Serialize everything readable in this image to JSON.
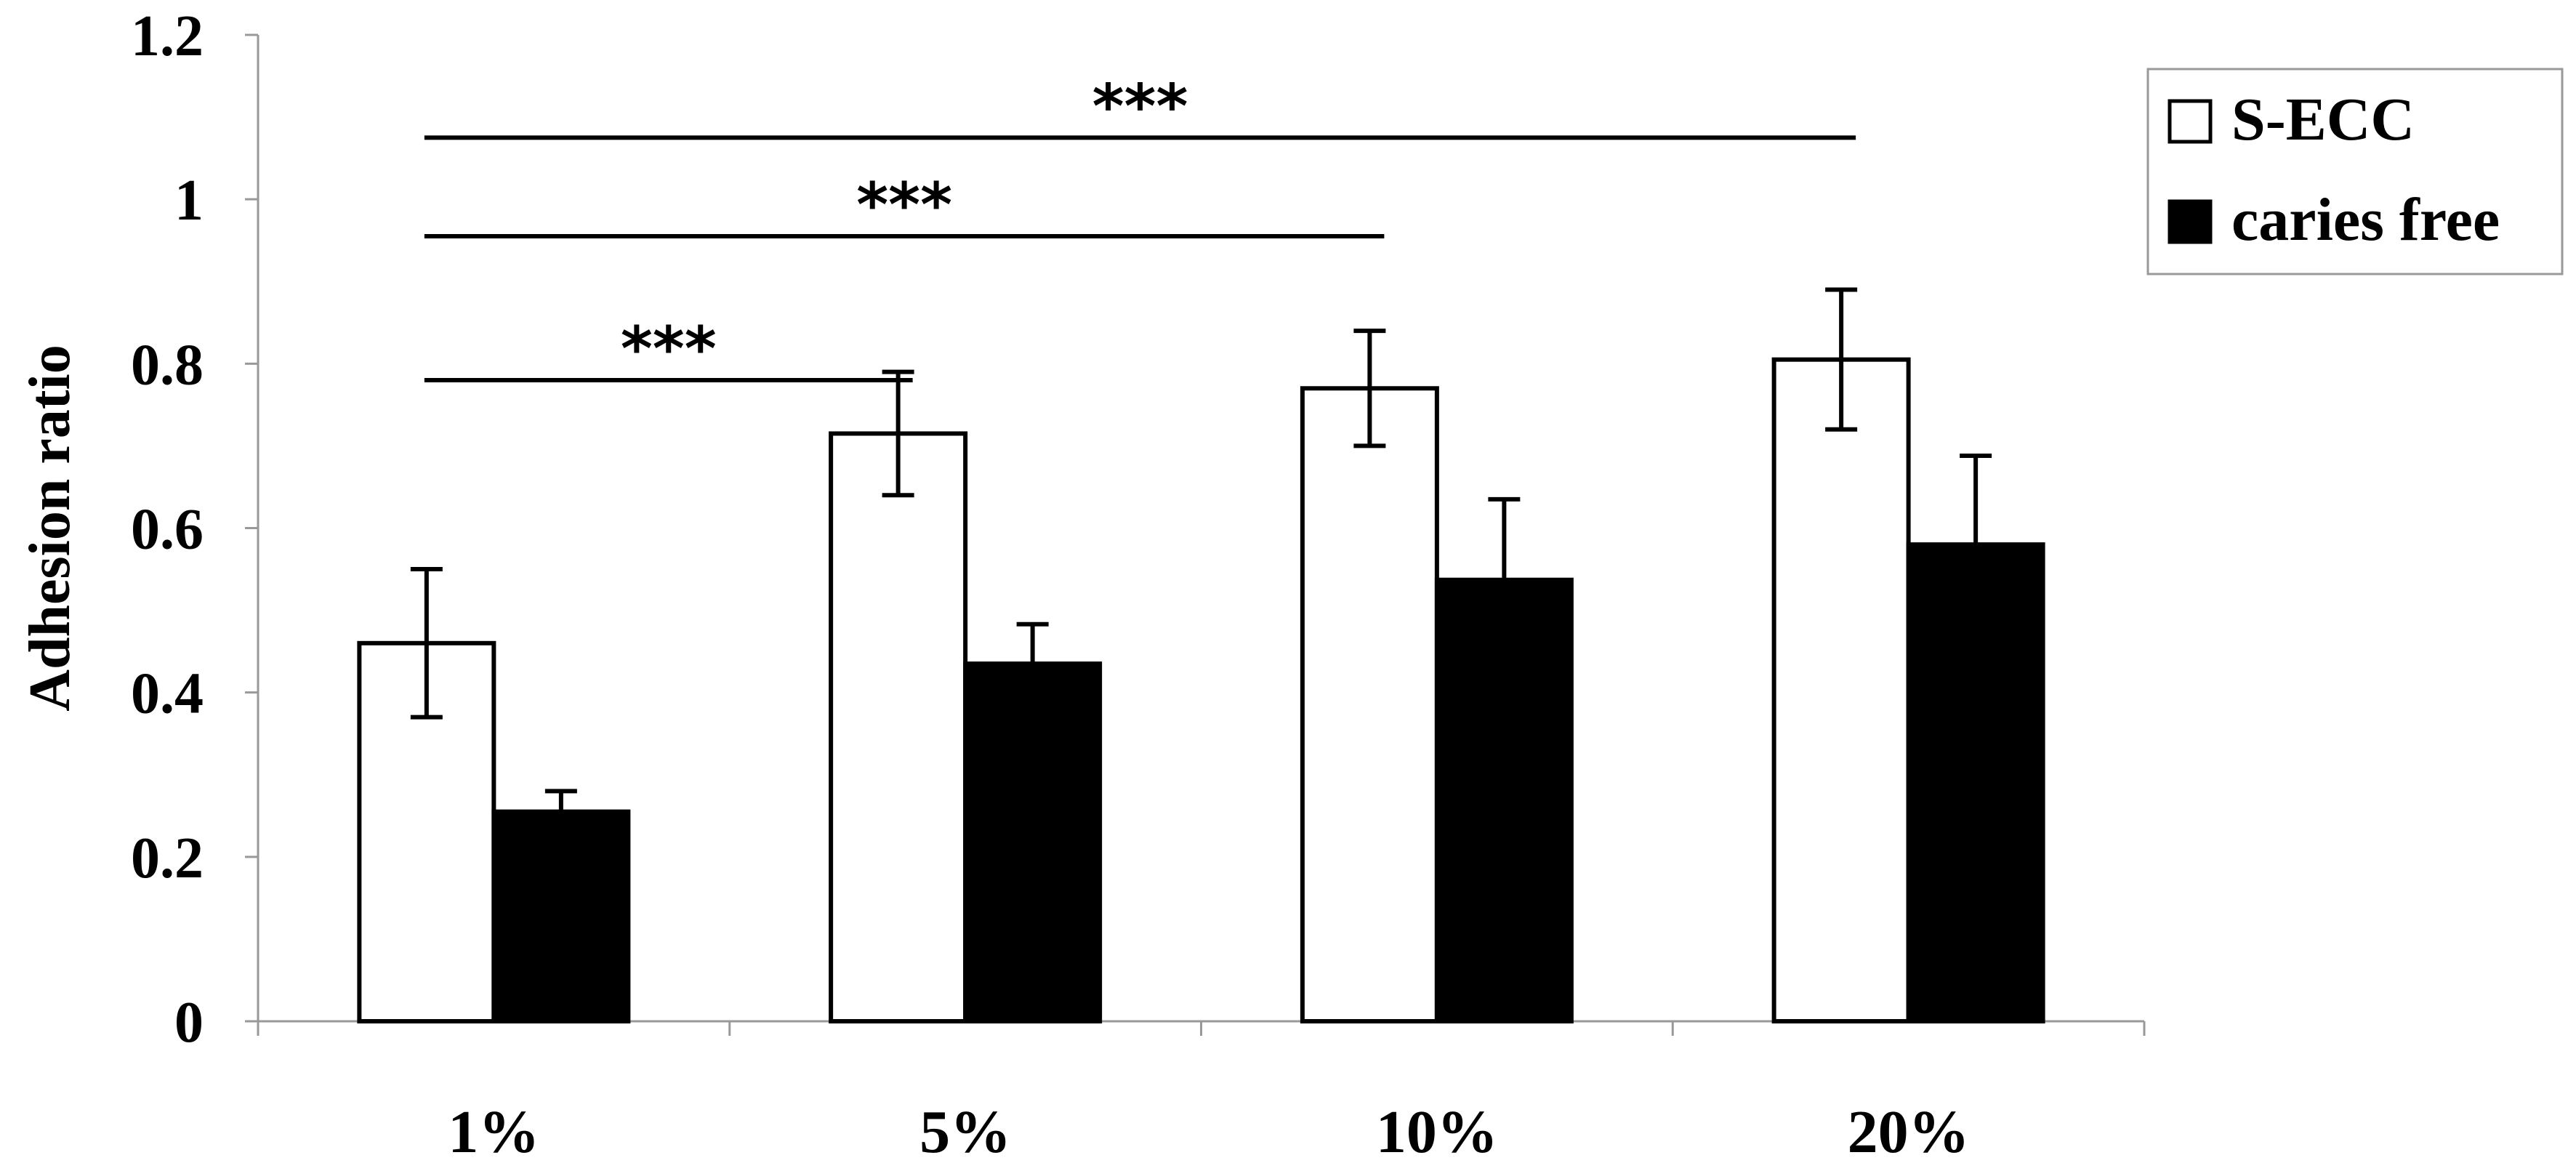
{
  "chart_data": {
    "type": "bar",
    "title": "",
    "xlabel": "",
    "ylabel": "Adhesion ratio",
    "ylim": [
      0,
      1.2
    ],
    "yticks": [
      "0",
      "0.2",
      "0.4",
      "0.6",
      "0.8",
      "1",
      "1.2"
    ],
    "ytick_values": [
      0,
      0.2,
      0.4,
      0.6,
      0.8,
      1.0,
      1.2
    ],
    "grid": false,
    "categories": [
      "1%",
      "5%",
      "10%",
      "20%"
    ],
    "series": [
      {
        "name": "S-ECC",
        "fill": "#ffffff",
        "stroke": "#000000",
        "values": [
          0.46,
          0.715,
          0.77,
          0.805
        ],
        "errors": [
          0.09,
          0.075,
          0.07,
          0.085
        ]
      },
      {
        "name": "caries free",
        "fill": "#000000",
        "stroke": "#000000",
        "values": [
          0.255,
          0.435,
          0.537,
          0.58
        ],
        "errors": [
          0.025,
          0.048,
          0.098,
          0.108
        ]
      }
    ],
    "significance": [
      {
        "label": "***",
        "from": "1%",
        "to": "5%",
        "y": 0.78
      },
      {
        "label": "***",
        "from": "1%",
        "to": "10%",
        "y": 0.955
      },
      {
        "label": "***",
        "from": "1%",
        "to": "20%",
        "y": 1.075
      }
    ],
    "legend": {
      "position": "top-right",
      "items": [
        "S-ECC",
        "caries free"
      ]
    }
  }
}
